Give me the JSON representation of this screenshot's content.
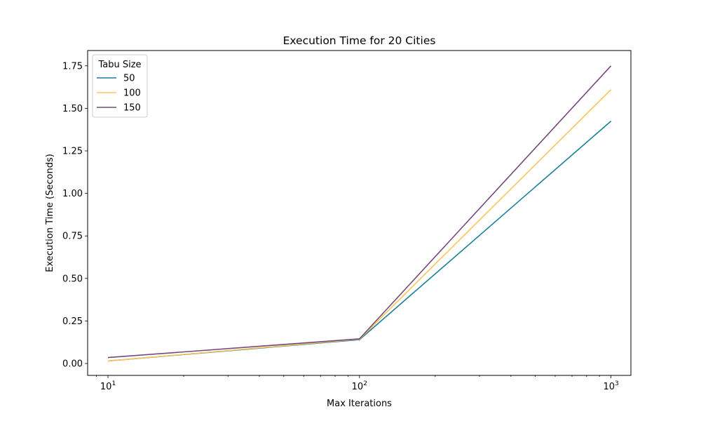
{
  "chart_data": {
    "type": "line",
    "title": "Execution Time for 20 Cities",
    "xlabel": "Max Iterations",
    "ylabel": "Execution Time (Seconds)",
    "xscale": "log",
    "xlim": [
      8.3,
      1200
    ],
    "ylim": [
      -0.07,
      1.84
    ],
    "x": [
      10,
      100,
      1000
    ],
    "xticks": [
      {
        "value": 10,
        "base": "10",
        "exp": "1"
      },
      {
        "value": 100,
        "base": "10",
        "exp": "2"
      },
      {
        "value": 1000,
        "base": "10",
        "exp": "3"
      }
    ],
    "yticks": [
      {
        "value": 0.0,
        "label": "0.00"
      },
      {
        "value": 0.25,
        "label": "0.25"
      },
      {
        "value": 0.5,
        "label": "0.50"
      },
      {
        "value": 0.75,
        "label": "0.75"
      },
      {
        "value": 1.0,
        "label": "1.00"
      },
      {
        "value": 1.25,
        "label": "1.25"
      },
      {
        "value": 1.5,
        "label": "1.50"
      },
      {
        "value": 1.75,
        "label": "1.75"
      }
    ],
    "legend": {
      "title": "Tabu Size",
      "placement": "top-left"
    },
    "series": [
      {
        "name": "50",
        "color": "#1b7f9a",
        "values": [
          0.015,
          0.14,
          1.425
        ]
      },
      {
        "name": "100",
        "color": "#fcc55c",
        "values": [
          0.015,
          0.143,
          1.61
        ]
      },
      {
        "name": "150",
        "color": "#74497a",
        "values": [
          0.035,
          0.145,
          1.75
        ]
      }
    ]
  }
}
